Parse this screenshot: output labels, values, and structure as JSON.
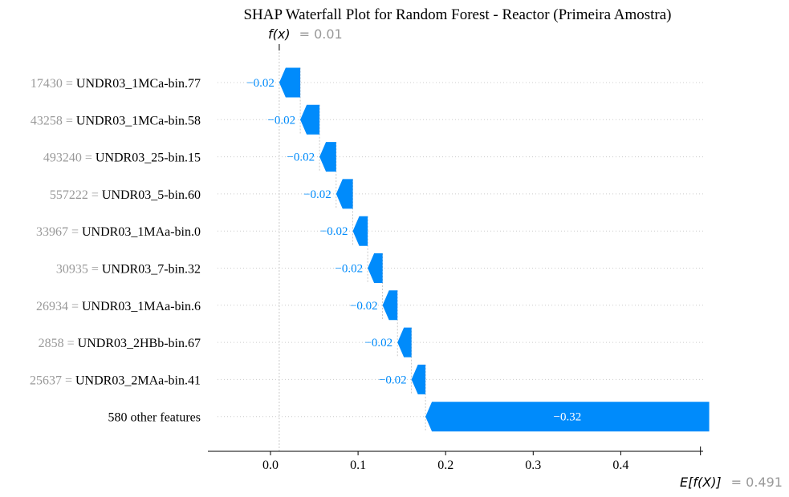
{
  "chart_data": {
    "type": "waterfall",
    "title": "SHAP Waterfall Plot for Random Forest - Reactor (Primeira Amostra)",
    "fx": {
      "symbol": "f(x)",
      "value_text": "= 0.01",
      "value": 0.01
    },
    "base": {
      "symbol": "E[f(X)]",
      "value_text": "= 0.491",
      "value": 0.491
    },
    "features": [
      {
        "feature_value": "17430 =",
        "name": "UNDR03_1MCa-bin.77",
        "shap": -0.024,
        "label": "−0.02"
      },
      {
        "feature_value": "43258 =",
        "name": "UNDR03_1MCa-bin.58",
        "shap": -0.022,
        "label": "−0.02"
      },
      {
        "feature_value": "493240 =",
        "name": "UNDR03_25-bin.15",
        "shap": -0.019,
        "label": "−0.02"
      },
      {
        "feature_value": "557222 =",
        "name": "UNDR03_5-bin.60",
        "shap": -0.019,
        "label": "−0.02"
      },
      {
        "feature_value": "33967 =",
        "name": "UNDR03_1MAa-bin.0",
        "shap": -0.017,
        "label": "−0.02"
      },
      {
        "feature_value": "30935 =",
        "name": "UNDR03_7-bin.32",
        "shap": -0.017,
        "label": "−0.02"
      },
      {
        "feature_value": "26934 =",
        "name": "UNDR03_1MAa-bin.6",
        "shap": -0.017,
        "label": "−0.02"
      },
      {
        "feature_value": "2858 =",
        "name": "UNDR03_2HBb-bin.67",
        "shap": -0.016,
        "label": "−0.02"
      },
      {
        "feature_value": "25637 =",
        "name": "UNDR03_2MAa-bin.41",
        "shap": -0.016,
        "label": "−0.02"
      },
      {
        "feature_value": "",
        "name": "580 other features",
        "shap": -0.324,
        "label": "−0.32"
      }
    ],
    "x_ticks": [
      0.0,
      0.1,
      0.2,
      0.3,
      0.4
    ],
    "x_tick_labels": [
      "0.0",
      "0.1",
      "0.2",
      "0.3",
      "0.4"
    ],
    "xlim": [
      -0.07,
      0.495
    ],
    "grid": true,
    "colors": {
      "negative": "#008bfb",
      "muted": "#999999",
      "grid": "#cccccc"
    }
  }
}
